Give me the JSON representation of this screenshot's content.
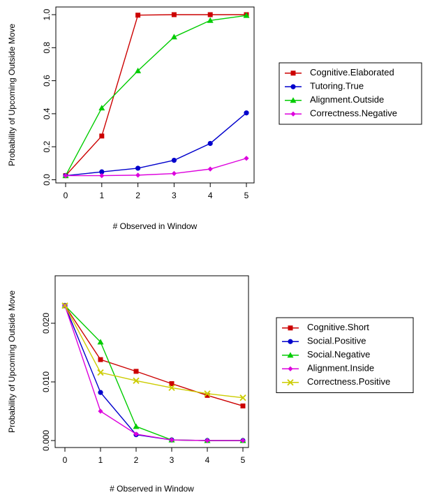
{
  "chart_data": [
    {
      "type": "line",
      "x": [
        0,
        1,
        2,
        3,
        4,
        5
      ],
      "xlabel": "# Observed in Window",
      "ylabel": "Probability of Upcoming Outside Move",
      "xlim": [
        0,
        5
      ],
      "ylim": [
        0,
        1
      ],
      "xticks": [
        "0",
        "1",
        "2",
        "3",
        "4",
        "5"
      ],
      "yticks": [
        0,
        0.2,
        0.4,
        0.6,
        0.8,
        1
      ],
      "ytick_labels": [
        "0.0",
        "0.2",
        "0.4",
        "0.6",
        "0.8",
        "1.0"
      ],
      "grid": false,
      "legend_position": "right",
      "series": [
        {
          "name": "Cognitive.Elaborated",
          "color": "#cc0000",
          "marker": "square",
          "values": [
            0.025,
            0.265,
            0.997,
            1.0,
            1.0,
            1.0
          ]
        },
        {
          "name": "Tutoring.True",
          "color": "#0000cc",
          "marker": "circle",
          "values": [
            0.025,
            0.048,
            0.07,
            0.118,
            0.22,
            0.405
          ]
        },
        {
          "name": "Alignment.Outside",
          "color": "#00cc00",
          "marker": "triangle",
          "values": [
            0.025,
            0.435,
            0.66,
            0.865,
            0.965,
            0.995
          ]
        },
        {
          "name": "Correctness.Negative",
          "color": "#dd00dd",
          "marker": "diamond",
          "values": [
            0.025,
            0.025,
            0.028,
            0.038,
            0.065,
            0.13
          ]
        }
      ]
    },
    {
      "type": "line",
      "x": [
        0,
        1,
        2,
        3,
        4,
        5
      ],
      "xlabel": "# Observed in Window",
      "ylabel": "Probability of Upcoming Outside Move",
      "xlim": [
        0,
        5
      ],
      "ylim": [
        0,
        0.025
      ],
      "xticks": [
        "0",
        "1",
        "2",
        "3",
        "4",
        "5"
      ],
      "yticks": [
        0,
        0.01,
        0.02
      ],
      "ytick_labels": [
        "0.000",
        "0.010",
        "0.020"
      ],
      "grid": false,
      "legend_position": "right",
      "series": [
        {
          "name": "Cognitive.Short",
          "color": "#cc0000",
          "marker": "square",
          "values": [
            0.023,
            0.0138,
            0.0118,
            0.0097,
            0.0077,
            0.0059
          ]
        },
        {
          "name": "Social.Positive",
          "color": "#0000cc",
          "marker": "circle",
          "values": [
            0.023,
            0.0082,
            0.001,
            0.0001,
            0.0,
            0.0
          ]
        },
        {
          "name": "Social.Negative",
          "color": "#00cc00",
          "marker": "triangle",
          "values": [
            0.023,
            0.0168,
            0.0024,
            0.0001,
            0.0,
            0.0
          ]
        },
        {
          "name": "Alignment.Inside",
          "color": "#dd00dd",
          "marker": "diamond",
          "values": [
            0.023,
            0.005,
            0.0011,
            0.0001,
            0.0,
            0.0
          ]
        },
        {
          "name": "Correctness.Positive",
          "color": "#cccc00",
          "marker": "cross",
          "values": [
            0.023,
            0.0116,
            0.0102,
            0.009,
            0.008,
            0.0073
          ]
        }
      ]
    }
  ]
}
